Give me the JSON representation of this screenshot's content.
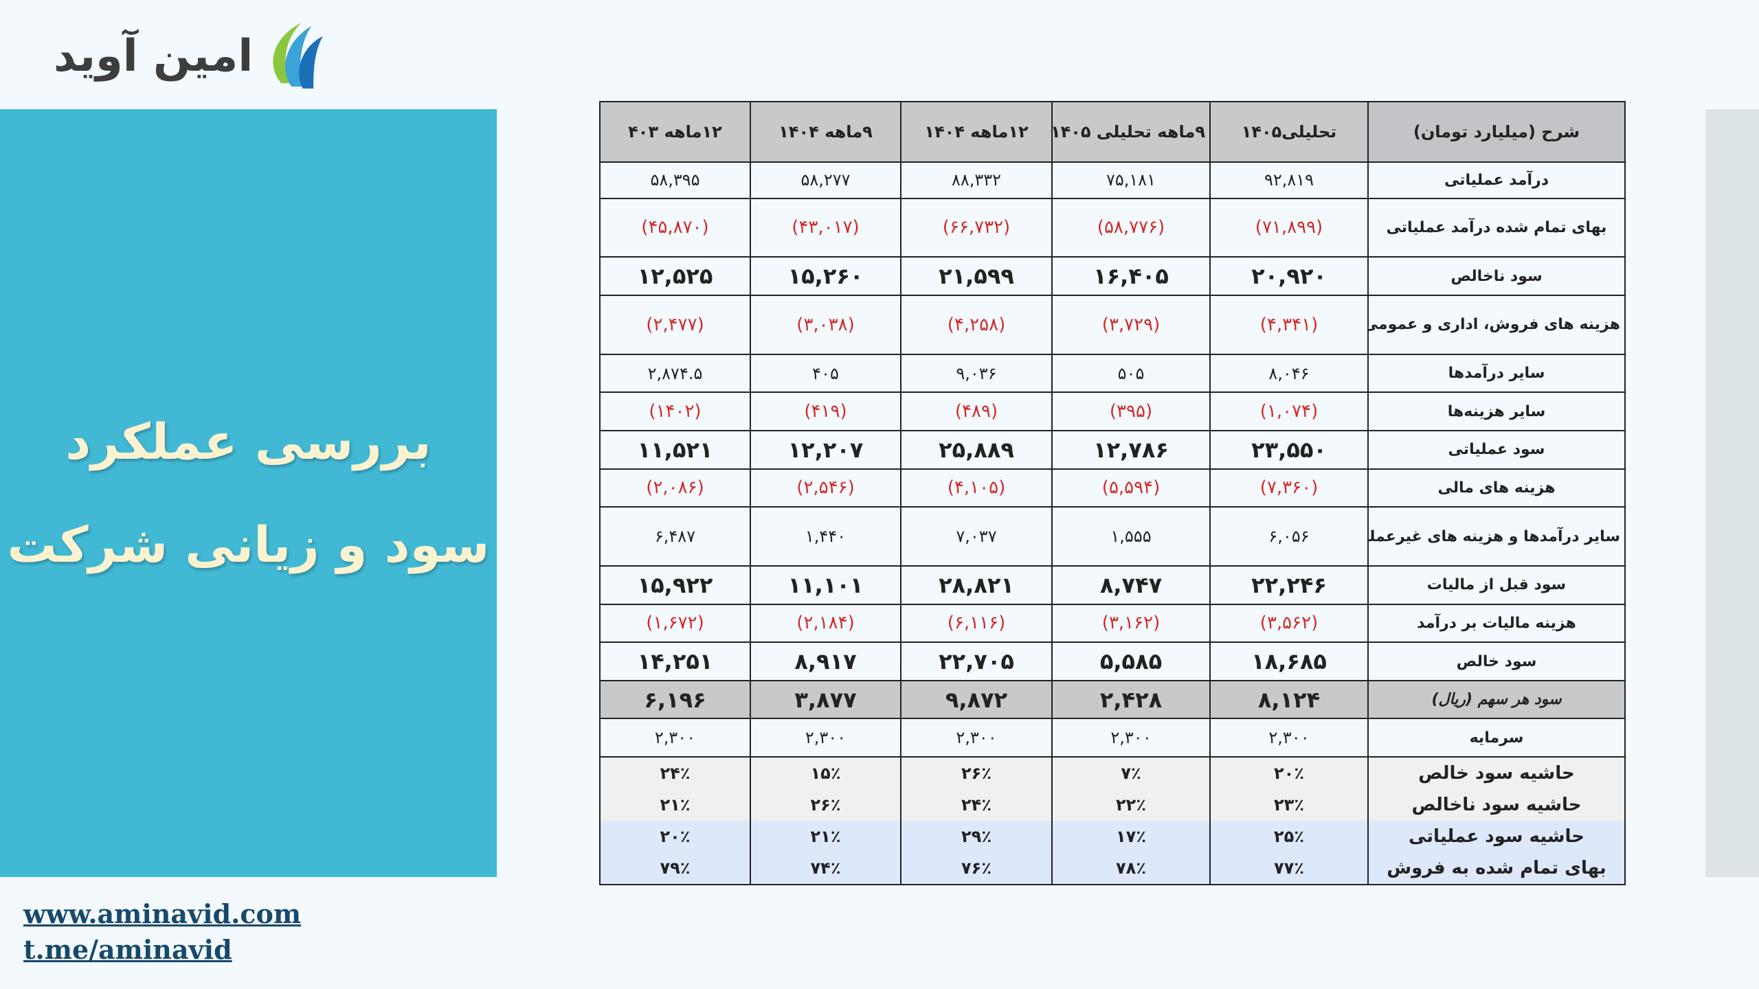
{
  "logo": {
    "text": "امین آوید"
  },
  "left_panel": {
    "title_line1": "بررسی عملکرد",
    "title_line2": "سود و زیانی شرکت"
  },
  "links": {
    "website": "www.aminavid.com",
    "telegram": "t.me/aminavid"
  },
  "colors": {
    "panel": "#41b9d5",
    "title": "#fbf2d0",
    "negative": "#d22a2a",
    "header": "#c9c9c9"
  },
  "table": {
    "headers": [
      "شرح (میلیارد تومان)",
      "تحلیلی۱۴۰۵",
      "۹ماهه تحلیلی ۱۴۰۵",
      "۱۲ماهه ۱۴۰۴",
      "۹ماهه ۱۴۰۴",
      "۱۲ماهه ۴۰۳"
    ],
    "rows": [
      {
        "label": "درآمد عملیاتی",
        "values": [
          "۹۲,۸۱۹",
          "۷۵,۱۸۱",
          "۸۸,۳۳۲",
          "۵۸,۲۷۷",
          "۵۸,۳۹۵"
        ]
      },
      {
        "label": "بهای تمام شده درآمد عملیاتی",
        "values": [
          "(۷۱,۸۹۹)",
          "(۵۸,۷۷۶)",
          "(۶۶,۷۳۲)",
          "(۴۳,۰۱۷)",
          "(۴۵,۸۷۰)"
        ]
      },
      {
        "label": "سود  ناخالص",
        "values": [
          "۲۰,۹۲۰",
          "۱۶,۴۰۵",
          "۲۱,۵۹۹",
          "۱۵,۲۶۰",
          "۱۲,۵۲۵"
        ]
      },
      {
        "label": "هزینه های فروش، اداری و عمومی",
        "values": [
          "(۴,۳۴۱)",
          "(۳,۷۲۹)",
          "(۴,۲۵۸)",
          "(۳,۰۳۸)",
          "(۲,۴۷۷)"
        ]
      },
      {
        "label": "سایر درآمدها",
        "values": [
          "۸,۰۴۶",
          "۵۰۵",
          "۹,۰۳۶",
          "۴۰۵",
          "۲,۸۷۴.۵"
        ]
      },
      {
        "label": "سایر هزینه‌ها",
        "values": [
          "(۱,۰۷۴)",
          "(۳۹۵)",
          "(۴۸۹)",
          "(۴۱۹)",
          "(۱۴۰۲)"
        ]
      },
      {
        "label": "سود  عملیاتی",
        "values": [
          "۲۳,۵۵۰",
          "۱۲,۷۸۶",
          "۲۵,۸۸۹",
          "۱۲,۲۰۷",
          "۱۱,۵۲۱"
        ]
      },
      {
        "label": "هزینه های مالی",
        "values": [
          "(۷,۳۶۰)",
          "(۵,۵۹۴)",
          "(۴,۱۰۵)",
          "(۲,۵۴۶)",
          "(۲,۰۸۶)"
        ]
      },
      {
        "label": "سایر درآمدها و هزینه های غیرعملیاتی",
        "values": [
          "۶,۰۵۶",
          "۱,۵۵۵",
          "۷,۰۳۷",
          "۱,۴۴۰",
          "۶,۴۸۷"
        ]
      },
      {
        "label": "سود قبل از مالیات",
        "values": [
          "۲۲,۲۴۶",
          "۸,۷۴۷",
          "۲۸,۸۲۱",
          "۱۱,۱۰۱",
          "۱۵,۹۲۲"
        ]
      },
      {
        "label": "هزینه مالیات بر درآمد",
        "values": [
          "(۳,۵۶۲)",
          "(۳,۱۶۲)",
          "(۶,۱۱۶)",
          "(۲,۱۸۴)",
          "(۱,۶۷۲)"
        ]
      },
      {
        "label": "سود  خالص",
        "values": [
          "۱۸,۶۸۵",
          "۵,۵۸۵",
          "۲۲,۷۰۵",
          "۸,۹۱۷",
          "۱۴,۲۵۱"
        ]
      },
      {
        "label": "سود هر سهم (ریال)",
        "values": [
          "۸,۱۲۴",
          "۲,۴۲۸",
          "۹,۸۷۲",
          "۳,۸۷۷",
          "۶,۱۹۶"
        ]
      },
      {
        "label": "سرمایه",
        "values": [
          "۲,۳۰۰",
          "۲,۳۰۰",
          "۲,۳۰۰",
          "۲,۳۰۰",
          "۲,۳۰۰"
        ]
      },
      {
        "label": "حاشیه سود خالص",
        "values": [
          "۲۰٪",
          "۷٪",
          "۲۶٪",
          "۱۵٪",
          "۲۴٪"
        ]
      },
      {
        "label": "حاشیه سود ناخالص",
        "values": [
          "۲۳٪",
          "۲۲٪",
          "۲۴٪",
          "۲۶٪",
          "۲۱٪"
        ]
      },
      {
        "label": "حاشیه سود عملیاتی",
        "values": [
          "۲۵٪",
          "۱۷٪",
          "۲۹٪",
          "۲۱٪",
          "۲۰٪"
        ]
      },
      {
        "label": "بهای تمام شده به فروش",
        "values": [
          "۷۷٪",
          "۷۸٪",
          "۷۶٪",
          "۷۴٪",
          "۷۹٪"
        ]
      }
    ]
  }
}
